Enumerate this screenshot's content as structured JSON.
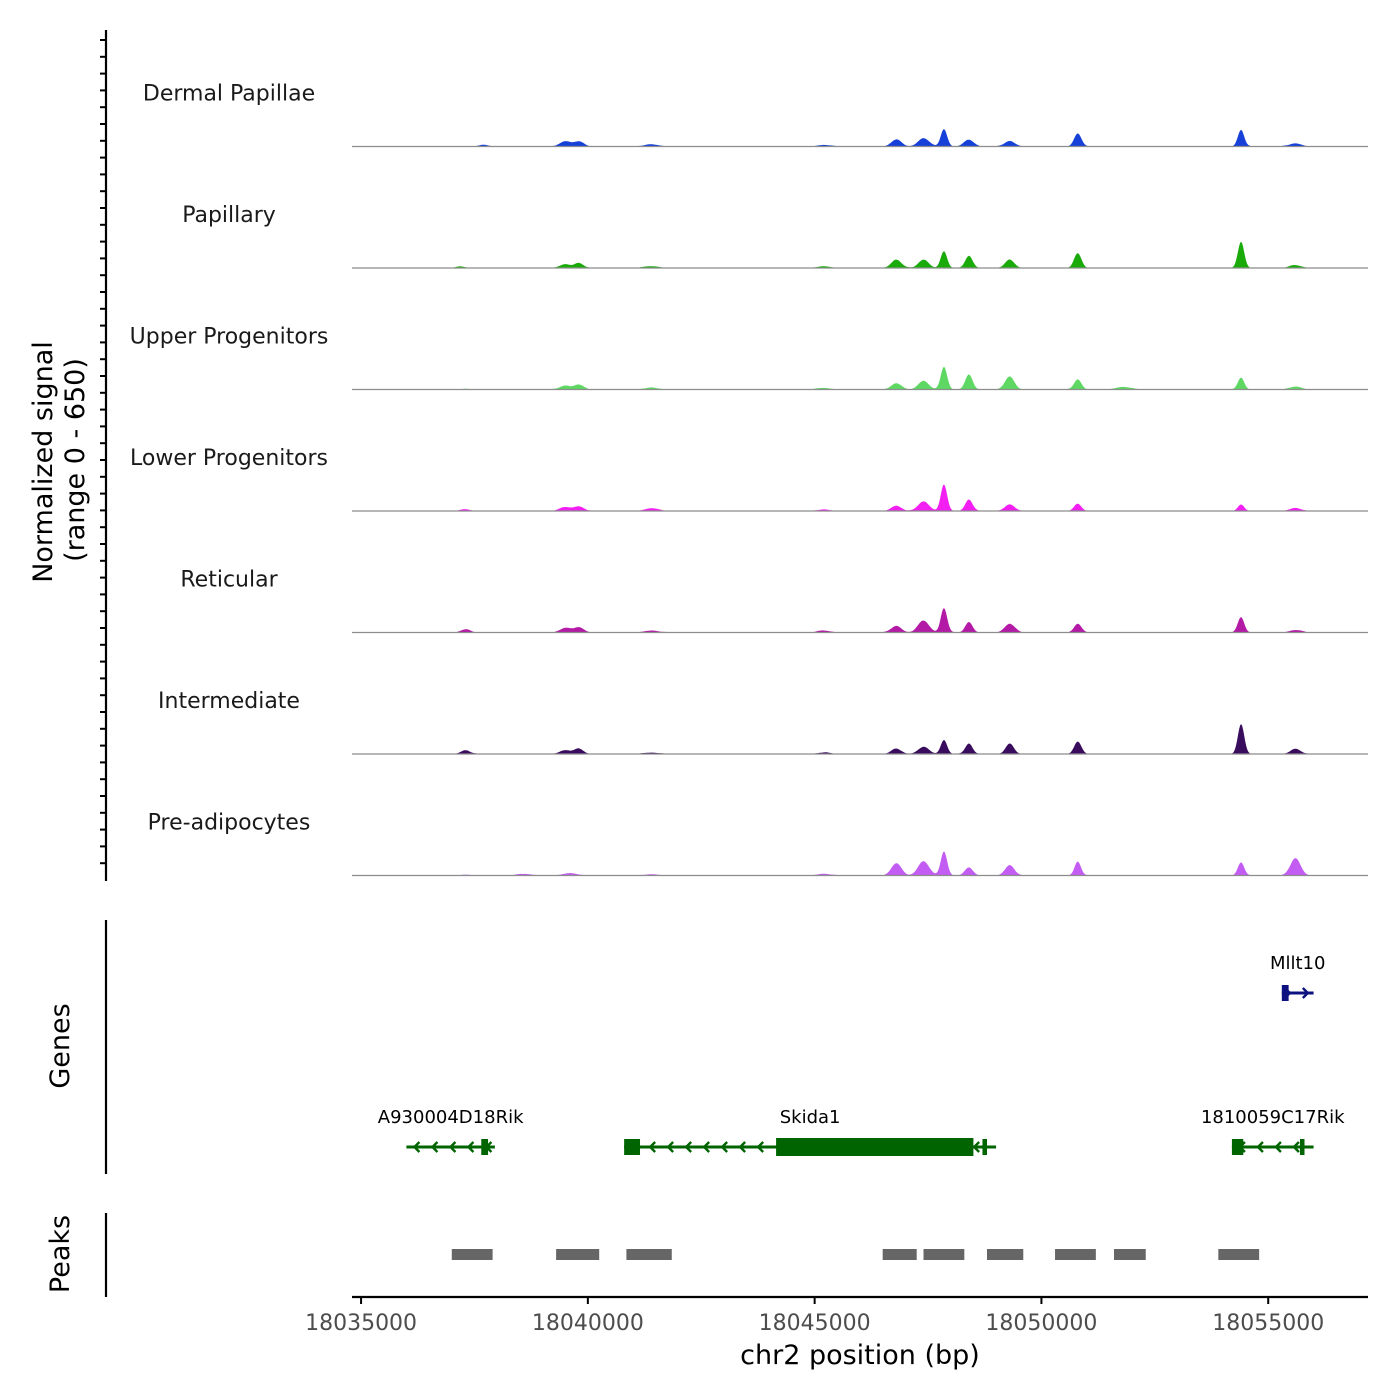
{
  "chart_data": {
    "type": "area",
    "chromosome": "chr2",
    "x_range": [
      18034800,
      18057200
    ],
    "xlabel": "chr2 position (bp)",
    "x_ticks": [
      18035000,
      18040000,
      18045000,
      18050000,
      18055000
    ],
    "x_tick_labels": [
      "18035000",
      "18040000",
      "18045000",
      "18050000",
      "18055000"
    ],
    "ylabel_line1": "Normalized signal",
    "ylabel_line2": "(range 0 - 650)",
    "y_range": [
      0,
      650
    ],
    "signal_x_start": 18035000,
    "signal_x_end": 18056000,
    "tracks": [
      {
        "name": "Dermal Papillae",
        "color": "#1640d8",
        "peaks": [
          [
            18035900,
            3,
            100
          ],
          [
            18037700,
            8,
            120
          ],
          [
            18039500,
            30,
            120
          ],
          [
            18039800,
            28,
            110
          ],
          [
            18041400,
            12,
            160
          ],
          [
            18045200,
            9,
            140
          ],
          [
            18046800,
            40,
            110
          ],
          [
            18047400,
            48,
            120
          ],
          [
            18047850,
            100,
            70
          ],
          [
            18048400,
            38,
            110
          ],
          [
            18049300,
            32,
            110
          ],
          [
            18050800,
            75,
            80
          ],
          [
            18054400,
            95,
            70
          ],
          [
            18055600,
            18,
            130
          ]
        ]
      },
      {
        "name": "Papillary",
        "color": "#1aab0a",
        "peaks": [
          [
            18035900,
            3,
            100
          ],
          [
            18037200,
            8,
            100
          ],
          [
            18039500,
            22,
            110
          ],
          [
            18039800,
            28,
            100
          ],
          [
            18041400,
            10,
            160
          ],
          [
            18045200,
            10,
            140
          ],
          [
            18046800,
            48,
            110
          ],
          [
            18047400,
            48,
            110
          ],
          [
            18047850,
            95,
            70
          ],
          [
            18048400,
            70,
            80
          ],
          [
            18049300,
            48,
            100
          ],
          [
            18050800,
            85,
            80
          ],
          [
            18054400,
            150,
            70
          ],
          [
            18055600,
            16,
            130
          ]
        ]
      },
      {
        "name": "Upper Progenitors",
        "color": "#5ed863",
        "peaks": [
          [
            18037300,
            3,
            100
          ],
          [
            18039500,
            22,
            120
          ],
          [
            18039800,
            28,
            100
          ],
          [
            18041400,
            10,
            160
          ],
          [
            18045200,
            9,
            140
          ],
          [
            18046800,
            36,
            110
          ],
          [
            18047400,
            50,
            110
          ],
          [
            18047850,
            130,
            70
          ],
          [
            18048400,
            85,
            80
          ],
          [
            18049300,
            75,
            100
          ],
          [
            18050800,
            58,
            80
          ],
          [
            18051800,
            15,
            160
          ],
          [
            18054400,
            68,
            70
          ],
          [
            18055600,
            16,
            130
          ]
        ]
      },
      {
        "name": "Lower Progenitors",
        "color": "#f21ef2",
        "peaks": [
          [
            18037300,
            10,
            100
          ],
          [
            18039500,
            22,
            120
          ],
          [
            18039800,
            26,
            110
          ],
          [
            18041400,
            16,
            140
          ],
          [
            18045200,
            8,
            140
          ],
          [
            18046800,
            30,
            110
          ],
          [
            18047400,
            55,
            120
          ],
          [
            18047850,
            150,
            70
          ],
          [
            18048400,
            66,
            80
          ],
          [
            18049300,
            36,
            110
          ],
          [
            18050800,
            40,
            80
          ],
          [
            18054400,
            36,
            70
          ],
          [
            18055600,
            16,
            130
          ]
        ]
      },
      {
        "name": "Reticular",
        "color": "#b31aa6",
        "peaks": [
          [
            18037300,
            18,
            100
          ],
          [
            18039500,
            25,
            120
          ],
          [
            18039800,
            30,
            110
          ],
          [
            18041400,
            11,
            160
          ],
          [
            18045200,
            11,
            140
          ],
          [
            18046800,
            38,
            110
          ],
          [
            18047400,
            68,
            120
          ],
          [
            18047850,
            140,
            70
          ],
          [
            18048400,
            60,
            80
          ],
          [
            18049300,
            50,
            110
          ],
          [
            18050800,
            50,
            80
          ],
          [
            18054400,
            88,
            70
          ],
          [
            18055600,
            14,
            130
          ]
        ]
      },
      {
        "name": "Intermediate",
        "color": "#3a0c5e",
        "peaks": [
          [
            18037300,
            22,
            100
          ],
          [
            18039500,
            22,
            120
          ],
          [
            18039800,
            30,
            100
          ],
          [
            18041400,
            8,
            160
          ],
          [
            18045200,
            8,
            140
          ],
          [
            18046800,
            30,
            110
          ],
          [
            18047400,
            40,
            120
          ],
          [
            18047850,
            80,
            70
          ],
          [
            18048400,
            60,
            80
          ],
          [
            18049300,
            60,
            90
          ],
          [
            18050800,
            70,
            80
          ],
          [
            18054400,
            170,
            70
          ],
          [
            18055600,
            30,
            110
          ]
        ]
      },
      {
        "name": "Pre-adipocytes",
        "color": "#c25cf2",
        "peaks": [
          [
            18037300,
            5,
            100
          ],
          [
            18038600,
            9,
            160
          ],
          [
            18039600,
            13,
            160
          ],
          [
            18041400,
            7,
            160
          ],
          [
            18045200,
            10,
            140
          ],
          [
            18046800,
            70,
            110
          ],
          [
            18047400,
            82,
            120
          ],
          [
            18047850,
            138,
            70
          ],
          [
            18048400,
            45,
            90
          ],
          [
            18049300,
            60,
            100
          ],
          [
            18050800,
            80,
            70
          ],
          [
            18054400,
            75,
            70
          ],
          [
            18055600,
            100,
            110
          ]
        ]
      }
    ],
    "genes_label": "Genes",
    "genes": [
      {
        "name": "Mllt10",
        "strand": "+",
        "start": 18055300,
        "end": 18056000,
        "row": 1,
        "color": "#0d1280",
        "exons": [
          [
            18055300,
            18055450
          ]
        ],
        "cds": []
      },
      {
        "name": "A930004D18Rik",
        "strand": "-",
        "start": 18036000,
        "end": 18037950,
        "row": 2,
        "color": "#006400",
        "exons": [
          [
            18037650,
            18037800
          ]
        ],
        "cds": []
      },
      {
        "name": "Skida1",
        "strand": "-",
        "start": 18040800,
        "end": 18049000,
        "row": 2,
        "color": "#006400",
        "exons": [
          [
            18040800,
            18041150
          ],
          [
            18048700,
            18048800
          ]
        ],
        "cds": [
          [
            18044150,
            18048500
          ]
        ]
      },
      {
        "name": "1810059C17Rik",
        "strand": "-",
        "start": 18054200,
        "end": 18056000,
        "row": 2,
        "color": "#006400",
        "exons": [
          [
            18054200,
            18054450
          ],
          [
            18055700,
            18055800
          ]
        ],
        "cds": []
      }
    ],
    "peaks_label": "Peaks",
    "peak_color": "#666666",
    "peak_regions": [
      [
        18037000,
        18037900
      ],
      [
        18039300,
        18040250
      ],
      [
        18040850,
        18041850
      ],
      [
        18046500,
        18047250
      ],
      [
        18047400,
        18048300
      ],
      [
        18048800,
        18049600
      ],
      [
        18050300,
        18051200
      ],
      [
        18051600,
        18052300
      ],
      [
        18053900,
        18054800
      ]
    ]
  }
}
